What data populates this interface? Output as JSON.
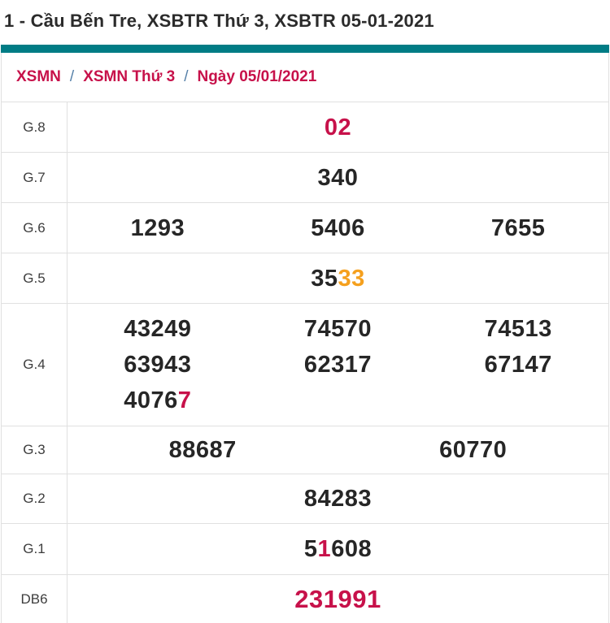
{
  "page": {
    "title": "1 - Cầu Bến Tre, XSBTR Thứ 3, XSBTR 05-01-2021"
  },
  "breadcrumb": {
    "items": [
      "XSMN",
      "XSMN Thứ 3",
      "Ngày 05/01/2021"
    ],
    "separator": "/"
  },
  "colors": {
    "accent_teal": "#007c85",
    "highlight_red": "#c7114a",
    "highlight_orange": "#f5a01e",
    "number_dark": "#262626",
    "breadcrumb_red": "#c7114a",
    "separator_blue": "#5580a8",
    "border_gray": "#e0e0e0",
    "label_gray": "#3d3d3d"
  },
  "prizes": {
    "g8": {
      "label": "G.8",
      "value": "02",
      "color": "red"
    },
    "g7": {
      "label": "G.7",
      "value": "340"
    },
    "g6": {
      "label": "G.6",
      "values": [
        "1293",
        "5406",
        "7655"
      ]
    },
    "g5": {
      "label": "G.5",
      "value_black": "35",
      "value_orange": "33"
    },
    "g4": {
      "label": "G.4",
      "line1": [
        "43249",
        "74570",
        "74513"
      ],
      "line2": [
        "63943",
        "62317",
        "67147"
      ],
      "line3_black": "4076",
      "line3_red": "7"
    },
    "g3": {
      "label": "G.3",
      "values": [
        "88687",
        "60770"
      ]
    },
    "g2": {
      "label": "G.2",
      "value": "84283"
    },
    "g1": {
      "label": "G.1",
      "seg1_black": "5",
      "seg2_red": "1",
      "seg3_black": "608"
    },
    "db6": {
      "label": "DB6",
      "value": "231991",
      "color": "red"
    }
  }
}
